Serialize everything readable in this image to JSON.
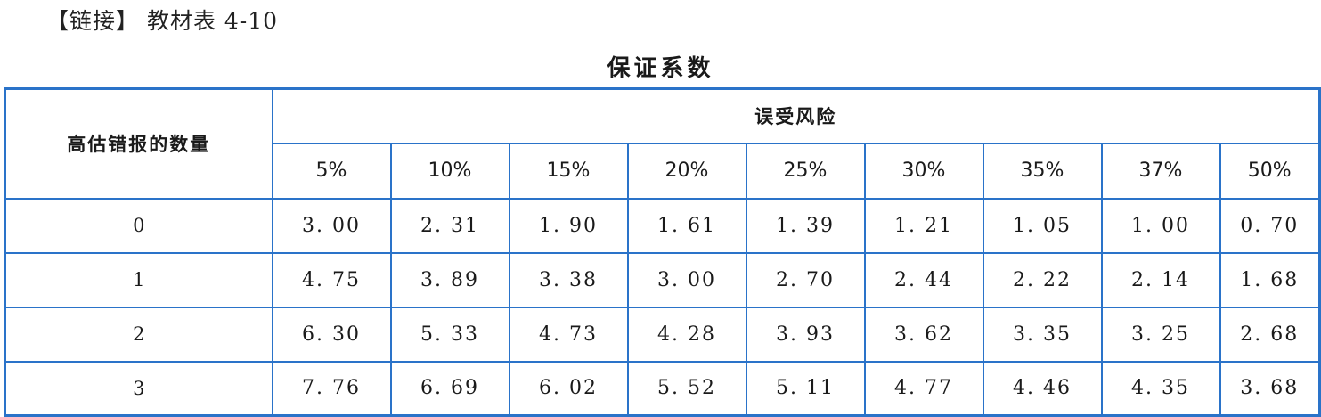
{
  "link_line": "【链接】 教材表 4-10",
  "title": "保证系数",
  "row_header": "高估错报的数量",
  "col_group_header": "误受风险",
  "risk_levels": [
    "5%",
    "10%",
    "15%",
    "20%",
    "25%",
    "30%",
    "35%",
    "37%",
    "50%"
  ],
  "rows": [
    {
      "label": "0",
      "values": [
        "3. 00",
        "2. 31",
        "1. 90",
        "1. 61",
        "1. 39",
        "1. 21",
        "1. 05",
        "1. 00",
        "0. 70"
      ]
    },
    {
      "label": "1",
      "values": [
        "4. 75",
        "3. 89",
        "3. 38",
        "3. 00",
        "2. 70",
        "2. 44",
        "2. 22",
        "2. 14",
        "1. 68"
      ]
    },
    {
      "label": "2",
      "values": [
        "6. 30",
        "5. 33",
        "4. 73",
        "4. 28",
        "3. 93",
        "3. 62",
        "3. 35",
        "3. 25",
        "2. 68"
      ]
    },
    {
      "label": "3",
      "values": [
        "7. 76",
        "6. 69",
        "6. 02",
        "5. 52",
        "5. 11",
        "4. 77",
        "4. 46",
        "4. 35",
        "3. 68"
      ]
    }
  ],
  "chart_data": {
    "type": "table",
    "title": "保证系数",
    "row_header": "高估错报的数量",
    "col_group_header": "误受风险",
    "columns": [
      "5%",
      "10%",
      "15%",
      "20%",
      "25%",
      "30%",
      "35%",
      "37%",
      "50%"
    ],
    "rows": [
      {
        "label": "0",
        "values": [
          3.0,
          2.31,
          1.9,
          1.61,
          1.39,
          1.21,
          1.05,
          1.0,
          0.7
        ]
      },
      {
        "label": "1",
        "values": [
          4.75,
          3.89,
          3.38,
          3.0,
          2.7,
          2.44,
          2.22,
          2.14,
          1.68
        ]
      },
      {
        "label": "2",
        "values": [
          6.3,
          5.33,
          4.73,
          4.28,
          3.93,
          3.62,
          3.35,
          3.25,
          2.68
        ]
      },
      {
        "label": "3",
        "values": [
          7.76,
          6.69,
          6.02,
          5.52,
          5.11,
          4.77,
          4.46,
          4.35,
          3.68
        ]
      }
    ]
  }
}
